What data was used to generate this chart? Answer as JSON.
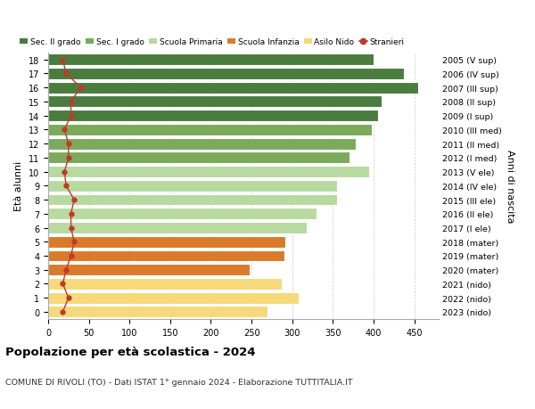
{
  "ages": [
    18,
    17,
    16,
    15,
    14,
    13,
    12,
    11,
    10,
    9,
    8,
    7,
    6,
    5,
    4,
    3,
    2,
    1,
    0
  ],
  "labels_right": [
    "2005 (V sup)",
    "2006 (IV sup)",
    "2007 (III sup)",
    "2008 (II sup)",
    "2009 (I sup)",
    "2010 (III med)",
    "2011 (II med)",
    "2012 (I med)",
    "2013 (V ele)",
    "2014 (IV ele)",
    "2015 (III ele)",
    "2016 (II ele)",
    "2017 (I ele)",
    "2018 (mater)",
    "2019 (mater)",
    "2020 (mater)",
    "2021 (nido)",
    "2022 (nido)",
    "2023 (nido)"
  ],
  "bar_values": [
    400,
    437,
    455,
    410,
    405,
    398,
    378,
    370,
    395,
    355,
    355,
    330,
    318,
    292,
    290,
    248,
    287,
    308,
    270
  ],
  "stranieri_values": [
    18,
    22,
    40,
    28,
    28,
    20,
    25,
    25,
    20,
    22,
    32,
    28,
    28,
    32,
    28,
    22,
    18,
    25,
    18
  ],
  "bar_colors": [
    "#4a7c3f",
    "#4a7c3f",
    "#4a7c3f",
    "#4a7c3f",
    "#4a7c3f",
    "#7aaa5a",
    "#7aaa5a",
    "#7aaa5a",
    "#b8d9a0",
    "#b8d9a0",
    "#b8d9a0",
    "#b8d9a0",
    "#b8d9a0",
    "#d97b2b",
    "#d97b2b",
    "#d97b2b",
    "#f5d97a",
    "#f5d97a",
    "#f5d97a"
  ],
  "legend_labels": [
    "Sec. II grado",
    "Sec. I grado",
    "Scuola Primaria",
    "Scuola Infanzia",
    "Asilo Nido",
    "Stranieri"
  ],
  "legend_colors": [
    "#4a7c3f",
    "#7aaa5a",
    "#b8d9a0",
    "#d97b2b",
    "#f5d97a",
    "#c0392b"
  ],
  "stranieri_color": "#c0392b",
  "title": "Popolazione per età scolastica - 2024",
  "subtitle": "COMUNE DI RIVOLI (TO) - Dati ISTAT 1° gennaio 2024 - Elaborazione TUTTITALIA.IT",
  "ylabel_left": "Età alunni",
  "ylabel_right": "Anni di nascita",
  "xlim_max": 480,
  "xticks": [
    0,
    50,
    100,
    150,
    200,
    250,
    300,
    350,
    400,
    450
  ],
  "background_color": "#ffffff",
  "grid_color": "#cccccc",
  "bar_height": 0.82,
  "bar_edgecolor": "white",
  "bar_linewidth": 0.8
}
